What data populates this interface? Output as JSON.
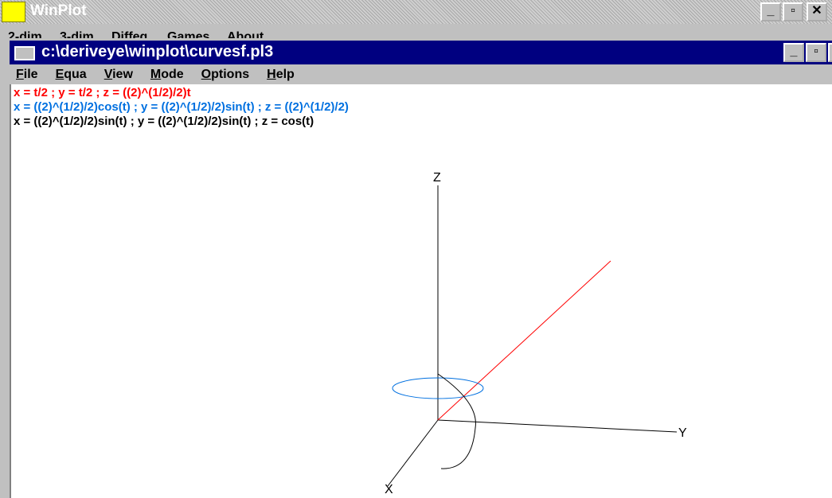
{
  "window": {
    "title": "WinPlot",
    "menu": [
      "2-dim",
      "3-dim",
      "Diffeq",
      "Games",
      "About"
    ]
  },
  "document_window": {
    "title": "c:\\deriveye\\winplot\\curvesf.pl3",
    "menu": [
      "File",
      "Equa",
      "View",
      "Mode",
      "Options",
      "Help"
    ]
  },
  "equations": [
    {
      "text": "x = t/2 ; y = t/2 ; z = ((2)^(1/2)/2)t",
      "color": "#ff0000"
    },
    {
      "text": "x = ((2)^(1/2)/2)cos(t) ; y = ((2)^(1/2)/2)sin(t) ; z = ((2)^(1/2)/2)",
      "color": "#0070e0"
    },
    {
      "text": "x = ((2)^(1/2)/2)sin(t) ; y = ((2)^(1/2)/2)sin(t) ; z = cos(t)",
      "color": "#000000"
    }
  ],
  "axes": {
    "x": "X",
    "y": "Y",
    "z": "Z"
  }
}
